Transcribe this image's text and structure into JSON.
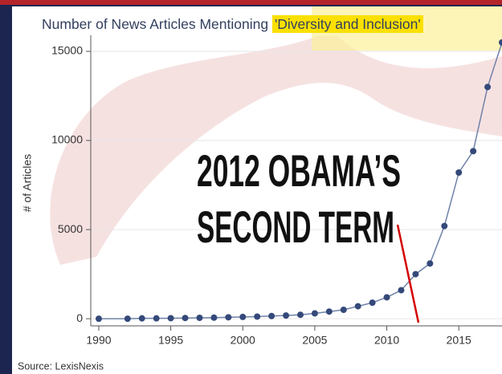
{
  "chart_data": {
    "type": "line",
    "title": "Number of News Articles Mentioning",
    "title_highlight": "'Diversity and Inclusion'",
    "ylabel": "# of Articles",
    "annotations": [
      "2012 OBAMA’S",
      "SECOND TERM"
    ],
    "source": "Source: LexisNexis",
    "x": [
      1990,
      1992,
      1993,
      1994,
      1995,
      1996,
      1997,
      1998,
      1999,
      2000,
      2001,
      2002,
      2003,
      2004,
      2005,
      2006,
      2007,
      2008,
      2009,
      2010,
      2011,
      2012,
      2013,
      2014,
      2015,
      2016,
      2017,
      2018
    ],
    "series": [
      {
        "color": "#34497a",
        "values": [
          0,
          0,
          20,
          20,
          30,
          40,
          50,
          60,
          80,
          100,
          120,
          150,
          180,
          220,
          300,
          400,
          500,
          700,
          900,
          1200,
          1600,
          2500,
          3100,
          5200,
          8200,
          9400,
          13000,
          15500
        ]
      }
    ],
    "xlim": [
      1989.5,
      2018
    ],
    "xticks": [
      1990,
      1995,
      2000,
      2005,
      2010,
      2015
    ],
    "ylim": [
      -400,
      15900
    ],
    "yticks": [
      0,
      5000,
      10000,
      15000
    ],
    "grid": true
  }
}
